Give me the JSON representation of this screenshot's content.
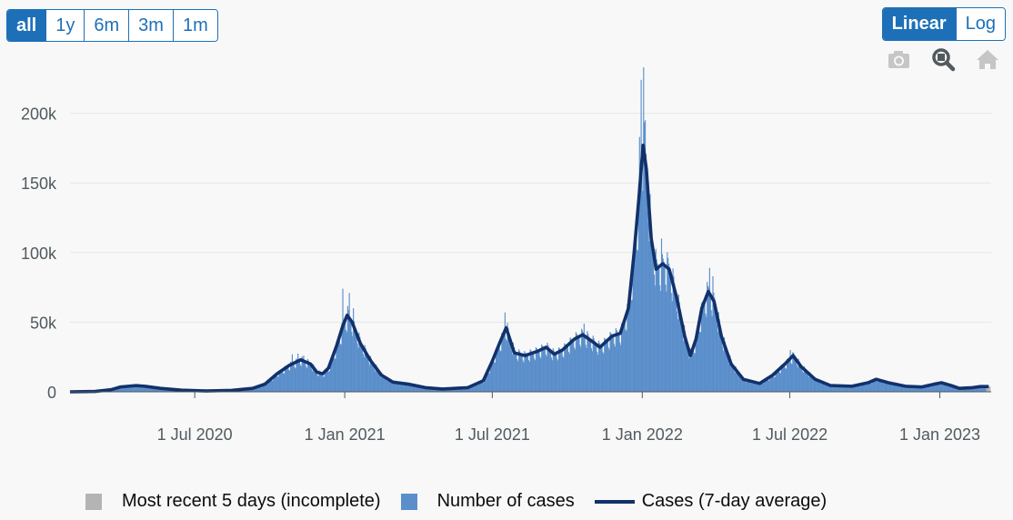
{
  "range_buttons": [
    "all",
    "1y",
    "6m",
    "3m",
    "1m"
  ],
  "range_selected": "all",
  "scale_buttons": [
    "Linear",
    "Log"
  ],
  "scale_selected": "Linear",
  "modebar_icons": [
    "camera-icon",
    "zoom-icon",
    "home-icon"
  ],
  "colors": {
    "bars": "#5b8fcb",
    "incomplete": "#b4b4b4",
    "line": "#12316b",
    "accent": "#1d70b8"
  },
  "legend": {
    "incomplete": "Most recent 5 days (incomplete)",
    "bars": "Number of cases",
    "line": "Cases (7-day average)"
  },
  "chart_data": {
    "type": "bar",
    "x_range": [
      "2020-01-30",
      "2023-03-05"
    ],
    "y_range": [
      0,
      235000
    ],
    "y_ticks": [
      0,
      50000,
      100000,
      150000,
      200000
    ],
    "y_tick_labels": [
      "0",
      "50k",
      "100k",
      "150k",
      "200k"
    ],
    "x_ticks": [
      "2020-07-01",
      "2021-01-01",
      "2021-07-01",
      "2022-01-01",
      "2022-07-01",
      "2023-01-01"
    ],
    "x_tick_labels": [
      "1 Jul 2020",
      "1 Jan 2021",
      "1 Jul 2021",
      "1 Jan 2022",
      "1 Jul 2022",
      "1 Jan 2023"
    ],
    "grid": true,
    "legend_position": "bottom",
    "series": [
      {
        "name": "Cases (7-day average)",
        "type": "line",
        "points": [
          [
            "2020-01-30",
            0
          ],
          [
            "2020-03-01",
            300
          ],
          [
            "2020-03-20",
            1500
          ],
          [
            "2020-04-01",
            3500
          ],
          [
            "2020-04-20",
            4500
          ],
          [
            "2020-05-01",
            4000
          ],
          [
            "2020-05-20",
            2500
          ],
          [
            "2020-06-15",
            1200
          ],
          [
            "2020-07-15",
            600
          ],
          [
            "2020-08-15",
            1000
          ],
          [
            "2020-09-10",
            2500
          ],
          [
            "2020-09-25",
            5500
          ],
          [
            "2020-10-10",
            13000
          ],
          [
            "2020-10-25",
            19000
          ],
          [
            "2020-11-08",
            23000
          ],
          [
            "2020-11-20",
            20000
          ],
          [
            "2020-11-28",
            14000
          ],
          [
            "2020-12-05",
            13000
          ],
          [
            "2020-12-12",
            17000
          ],
          [
            "2020-12-22",
            33000
          ],
          [
            "2020-12-30",
            48000
          ],
          [
            "2021-01-04",
            55000
          ],
          [
            "2021-01-10",
            50000
          ],
          [
            "2021-01-20",
            35000
          ],
          [
            "2021-02-01",
            23000
          ],
          [
            "2021-02-15",
            12000
          ],
          [
            "2021-03-01",
            7000
          ],
          [
            "2021-03-20",
            5500
          ],
          [
            "2021-04-10",
            3000
          ],
          [
            "2021-05-01",
            2000
          ],
          [
            "2021-06-01",
            3000
          ],
          [
            "2021-06-20",
            8000
          ],
          [
            "2021-07-01",
            22000
          ],
          [
            "2021-07-10",
            35000
          ],
          [
            "2021-07-18",
            46000
          ],
          [
            "2021-07-28",
            28000
          ],
          [
            "2021-08-10",
            26000
          ],
          [
            "2021-08-25",
            29000
          ],
          [
            "2021-09-05",
            32000
          ],
          [
            "2021-09-15",
            27000
          ],
          [
            "2021-09-25",
            30000
          ],
          [
            "2021-10-10",
            38000
          ],
          [
            "2021-10-20",
            41000
          ],
          [
            "2021-11-01",
            36000
          ],
          [
            "2021-11-10",
            32000
          ],
          [
            "2021-11-25",
            40000
          ],
          [
            "2021-12-05",
            42000
          ],
          [
            "2021-12-15",
            60000
          ],
          [
            "2021-12-22",
            100000
          ],
          [
            "2021-12-28",
            140000
          ],
          [
            "2022-01-02",
            177000
          ],
          [
            "2022-01-06",
            160000
          ],
          [
            "2022-01-12",
            110000
          ],
          [
            "2022-01-18",
            88000
          ],
          [
            "2022-01-26",
            92000
          ],
          [
            "2022-02-03",
            88000
          ],
          [
            "2022-02-12",
            68000
          ],
          [
            "2022-02-22",
            40000
          ],
          [
            "2022-03-01",
            26000
          ],
          [
            "2022-03-08",
            38000
          ],
          [
            "2022-03-15",
            60000
          ],
          [
            "2022-03-23",
            72000
          ],
          [
            "2022-03-30",
            65000
          ],
          [
            "2022-04-08",
            40000
          ],
          [
            "2022-04-20",
            20000
          ],
          [
            "2022-05-05",
            9000
          ],
          [
            "2022-05-25",
            6000
          ],
          [
            "2022-06-10",
            12000
          ],
          [
            "2022-06-25",
            20000
          ],
          [
            "2022-07-05",
            26000
          ],
          [
            "2022-07-15",
            18000
          ],
          [
            "2022-08-01",
            9000
          ],
          [
            "2022-08-20",
            4500
          ],
          [
            "2022-09-15",
            4000
          ],
          [
            "2022-10-05",
            6500
          ],
          [
            "2022-10-15",
            9000
          ],
          [
            "2022-10-30",
            6500
          ],
          [
            "2022-11-20",
            4000
          ],
          [
            "2022-12-10",
            3500
          ],
          [
            "2022-12-25",
            5500
          ],
          [
            "2023-01-03",
            6500
          ],
          [
            "2023-01-15",
            4500
          ],
          [
            "2023-01-25",
            2500
          ],
          [
            "2023-02-10",
            3000
          ],
          [
            "2023-02-20",
            3800
          ],
          [
            "2023-03-02",
            3800
          ]
        ]
      },
      {
        "name": "Number of cases",
        "type": "bar",
        "color": "#5b8fcb"
      },
      {
        "name": "Most recent 5 days (incomplete)",
        "type": "bar",
        "color": "#b4b4b4",
        "from": "2023-02-27"
      }
    ],
    "bar_spikes": [
      [
        "2020-10-28",
        27000
      ],
      [
        "2020-11-04",
        27500
      ],
      [
        "2020-11-11",
        26000
      ],
      [
        "2020-12-29",
        74000
      ],
      [
        "2021-01-06",
        71000
      ],
      [
        "2021-01-11",
        60000
      ],
      [
        "2021-07-16",
        57000
      ],
      [
        "2021-10-21",
        49000
      ],
      [
        "2021-12-28",
        183000
      ],
      [
        "2021-12-30",
        224000
      ],
      [
        "2022-01-02",
        233000
      ],
      [
        "2022-01-04",
        195000
      ],
      [
        "2022-01-07",
        130000
      ],
      [
        "2022-01-11",
        120000
      ],
      [
        "2022-01-24",
        110000
      ],
      [
        "2022-03-21",
        79000
      ],
      [
        "2022-03-24",
        89000
      ],
      [
        "2022-03-28",
        83000
      ],
      [
        "2022-07-01",
        30000
      ]
    ]
  }
}
